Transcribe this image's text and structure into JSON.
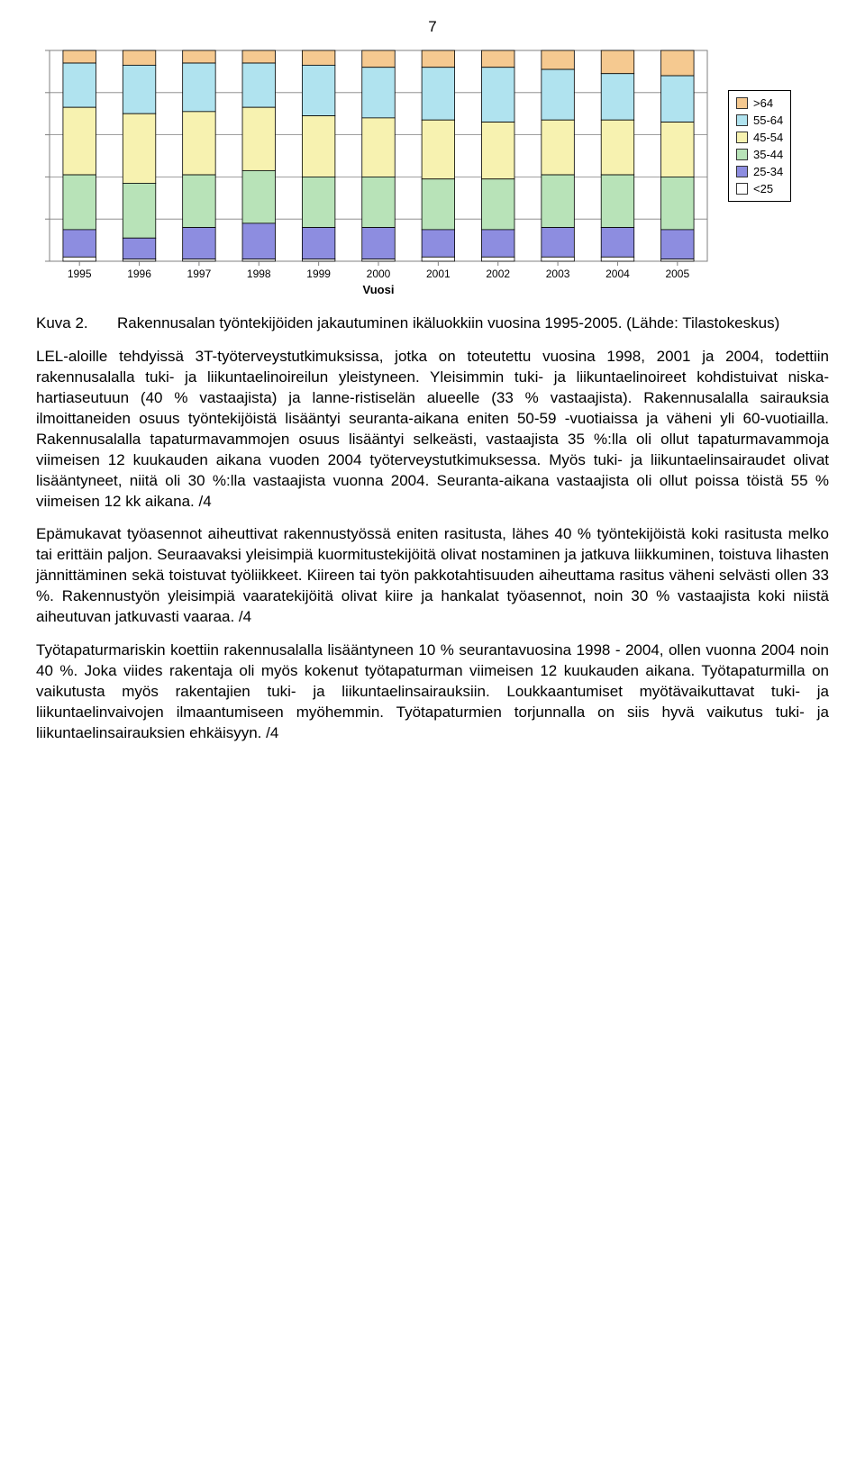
{
  "page_number": "7",
  "chart": {
    "type": "stacked-bar-100",
    "x_label": "Vuosi",
    "x_label_fontsize": 13,
    "tick_fontsize": 12,
    "categories": [
      "1995",
      "1996",
      "1997",
      "1998",
      "1999",
      "2000",
      "2001",
      "2002",
      "2003",
      "2004",
      "2005"
    ],
    "series": [
      {
        "name": ">64",
        "color": "#f5c990"
      },
      {
        "name": "55-64",
        "color": "#b0e3ef"
      },
      {
        "name": "45-54",
        "color": "#f7f2b0"
      },
      {
        "name": "35-44",
        "color": "#b8e3b8"
      },
      {
        "name": "25-34",
        "color": "#8d8de0"
      },
      {
        "name": "<25",
        "color": "#ffffff"
      }
    ],
    "values": [
      [
        6,
        21,
        32,
        26,
        13,
        2
      ],
      [
        7,
        23,
        33,
        26,
        10,
        1
      ],
      [
        6,
        23,
        30,
        25,
        15,
        1
      ],
      [
        6,
        21,
        30,
        25,
        17,
        1
      ],
      [
        7,
        24,
        29,
        24,
        15,
        1
      ],
      [
        8,
        24,
        28,
        24,
        15,
        1
      ],
      [
        8,
        25,
        28,
        24,
        13,
        2
      ],
      [
        8,
        26,
        27,
        24,
        13,
        2
      ],
      [
        9,
        24,
        26,
        25,
        14,
        2
      ],
      [
        11,
        22,
        26,
        25,
        14,
        2
      ],
      [
        12,
        22,
        26,
        25,
        14,
        1
      ]
    ],
    "bar_width": 0.55,
    "background_color": "#ffffff",
    "grid_color": "#808080",
    "gridlines": 5
  },
  "caption": {
    "label": "Kuva 2.",
    "text": "Rakennusalan työntekijöiden jakautuminen ikäluokkiin vuosina 1995-2005. (Lähde: Tilastokeskus)"
  },
  "paragraphs": {
    "p1": "LEL-aloille tehdyissä 3T-työterveystutkimuksissa, jotka on toteutettu vuosina 1998, 2001 ja 2004, todettiin rakennusalalla tuki- ja liikuntaelinoireilun yleisty­neen. Yleisimmin tuki- ja liikuntaelinoireet kohdistuivat niska-hartiaseutuun (40 % vastaajista) ja lanne-ristiselän alueelle (33 % vastaajista). Rakennusalalla sairauksia ilmoittaneiden osuus työntekijöistä lisääntyi seuranta-aikana eniten 50-59 -vuotiaissa ja väheni yli 60-vuotiailla. Rakennusalalla tapaturmavammo­jen osuus lisääntyi selkeästi, vastaajista 35 %:lla oli ollut tapaturmavammoja viimeisen 12 kuukauden aikana vuoden 2004 työterveystutkimuksessa. Myös tuki- ja liikuntaelinsairaudet olivat lisääntyneet, niitä oli 30 %:lla vastaajista vuonna 2004. Seuranta-aikana vastaajista oli ollut poissa töistä 55 % viimeisen 12 kk aikana. /4",
    "p2": "Epämukavat työasennot aiheuttivat rakennustyössä eniten rasitusta, lähes 40 % työntekijöistä koki rasitusta melko tai erittäin paljon. Seuraavaksi yleisimpiä kuormitustekijöitä olivat nostaminen ja jatkuva liikkuminen, toistuva lihasten jän­nittäminen sekä toistuvat työliikkeet. Kiireen tai työn pakkotahtisuuden aiheut­tama rasitus väheni selvästi ollen 33 %. Rakennustyön yleisimpiä vaaratekijöitä olivat kiire ja hankalat työasennot, noin 30 % vastaajista koki niistä aiheutuvan jatkuvasti vaaraa. /4",
    "p3": "Työtapaturmariskin koettiin rakennusalalla lisääntyneen 10 % seurantavuosina 1998 - 2004, ollen vuonna 2004 noin 40 %. Joka viides rakentaja oli myös ko­kenut työtapaturman viimeisen 12 kuukauden aikana. Työtapaturmilla on vaiku­tusta myös rakentajien tuki- ja liikuntaelinsairauksiin. Loukkaantumiset myötä­vaikuttavat tuki- ja liikuntaelinvaivojen ilmaantumiseen myöhemmin. Työtapa­turmien torjunnalla on siis hyvä vaikutus tuki- ja liikuntaelinsairauksien ehkäi­syyn. /4"
  }
}
